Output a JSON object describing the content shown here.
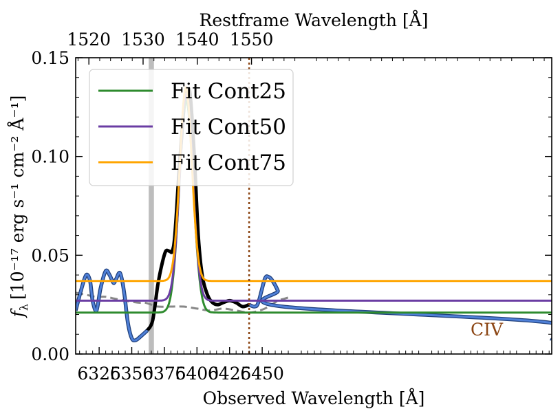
{
  "chart_data": {
    "type": "line",
    "xlabel": "Observed Wavelength [Å]",
    "ylabel": "f",
    "ylabel_subscript": "λ",
    "ylabel_units": "[10⁻¹⁷ erg s⁻¹ cm⁻² Å⁻¹]",
    "top_xlabel": "Restframe Wavelength [Å]",
    "xlim": [
      6307,
      6672
    ],
    "ylim": [
      0.0,
      0.15
    ],
    "x_ticks": [
      6325,
      6350,
      6375,
      6400,
      6425,
      6450
    ],
    "x_tick_labels": [
      "6325",
      "6350",
      "6375",
      "6400",
      "6425",
      "6450"
    ],
    "y_ticks": [
      0.0,
      0.05,
      0.1,
      0.15
    ],
    "y_tick_labels": [
      "0.00",
      "0.05",
      "0.10",
      "0.15"
    ],
    "top_ticks": [
      1520,
      1530,
      1540,
      1550
    ],
    "top_tick_labels": [
      "1520",
      "1530",
      "1540",
      "1550"
    ],
    "redshift_factor": 4.156,
    "shaded_band": [
      6363,
      6367
    ],
    "vline": {
      "x": 6440,
      "label": "CIV",
      "color": "#8B4513"
    },
    "legend": {
      "placement": "top-left",
      "entries": [
        {
          "name": "Fit Cont25",
          "color": "#2e8b2e"
        },
        {
          "name": "Fit Cont50",
          "color": "#6a3da3"
        },
        {
          "name": "Fit Cont75",
          "color": "#ffa500"
        }
      ]
    },
    "series": [
      {
        "name": "Observed spectrum (blue)",
        "color": "#4f80d8",
        "points": [
          [
            6307,
            0.022
          ],
          [
            6311,
            0.032
          ],
          [
            6315,
            0.04
          ],
          [
            6318,
            0.037
          ],
          [
            6320,
            0.027
          ],
          [
            6323,
            0.022
          ],
          [
            6326,
            0.033
          ],
          [
            6330,
            0.042
          ],
          [
            6333,
            0.04
          ],
          [
            6336,
            0.036
          ],
          [
            6338,
            0.038
          ],
          [
            6341,
            0.041
          ],
          [
            6344,
            0.032
          ],
          [
            6347,
            0.016
          ],
          [
            6350,
            0.008
          ],
          [
            6353,
            0.007
          ],
          [
            6357,
            0.009
          ],
          [
            6362,
            0.012
          ],
          [
            6440,
            0.025
          ],
          [
            6444,
            0.024
          ],
          [
            6447,
            0.026
          ],
          [
            6452,
            0.038
          ],
          [
            6455,
            0.039
          ],
          [
            6458,
            0.037
          ],
          [
            6462,
            0.032
          ],
          [
            6466,
            0.024
          ],
          [
            6669,
            0.016
          ],
          [
            6672,
            0.007
          ]
        ]
      },
      {
        "name": "Observed spectrum (black)",
        "color": "#000000",
        "points": [
          [
            6362,
            0.012
          ],
          [
            6366,
            0.017
          ],
          [
            6370,
            0.035
          ],
          [
            6373,
            0.045
          ],
          [
            6376,
            0.052
          ],
          [
            6379,
            0.052
          ],
          [
            6381,
            0.052
          ],
          [
            6383,
            0.06
          ],
          [
            6386,
            0.09
          ],
          [
            6389,
            0.117
          ],
          [
            6391,
            0.131
          ],
          [
            6393,
            0.134
          ],
          [
            6395,
            0.13
          ],
          [
            6398,
            0.1
          ],
          [
            6401,
            0.06
          ],
          [
            6404,
            0.04
          ],
          [
            6408,
            0.03
          ],
          [
            6412,
            0.026
          ],
          [
            6416,
            0.025
          ],
          [
            6420,
            0.026
          ],
          [
            6425,
            0.027
          ],
          [
            6430,
            0.026
          ],
          [
            6435,
            0.024
          ],
          [
            6440,
            0.025
          ]
        ]
      },
      {
        "name": "Fit Cont25",
        "color": "#2e8b2e",
        "baseline": 0.021,
        "peak": 0.128,
        "center": 6391.8,
        "sigma": 5.3
      },
      {
        "name": "Fit Cont50",
        "color": "#6a3da3",
        "baseline": 0.027,
        "peak": 0.132,
        "center": 6391.8,
        "sigma": 5.0
      },
      {
        "name": "Fit Cont75",
        "color": "#ffa500",
        "baseline": 0.037,
        "peak": 0.135,
        "center": 6391.5,
        "sigma": 4.6
      },
      {
        "name": "Error spectrum",
        "color": "#888888",
        "points": [
          [
            6307,
            0.031
          ],
          [
            6315,
            0.03
          ],
          [
            6322,
            0.029
          ],
          [
            6330,
            0.029
          ],
          [
            6337,
            0.028
          ],
          [
            6345,
            0.027
          ],
          [
            6355,
            0.026
          ],
          [
            6360,
            0.026
          ],
          [
            6365,
            0.025
          ],
          [
            6370,
            0.024
          ],
          [
            6380,
            0.024
          ],
          [
            6390,
            0.024
          ],
          [
            6400,
            0.023
          ],
          [
            6410,
            0.022
          ],
          [
            6420,
            0.023
          ],
          [
            6430,
            0.022
          ],
          [
            6440,
            0.021
          ],
          [
            6448,
            0.022
          ],
          [
            6455,
            0.024
          ],
          [
            6462,
            0.027
          ],
          [
            6467,
            0.028
          ],
          [
            6472,
            0.029
          ]
        ]
      }
    ]
  }
}
